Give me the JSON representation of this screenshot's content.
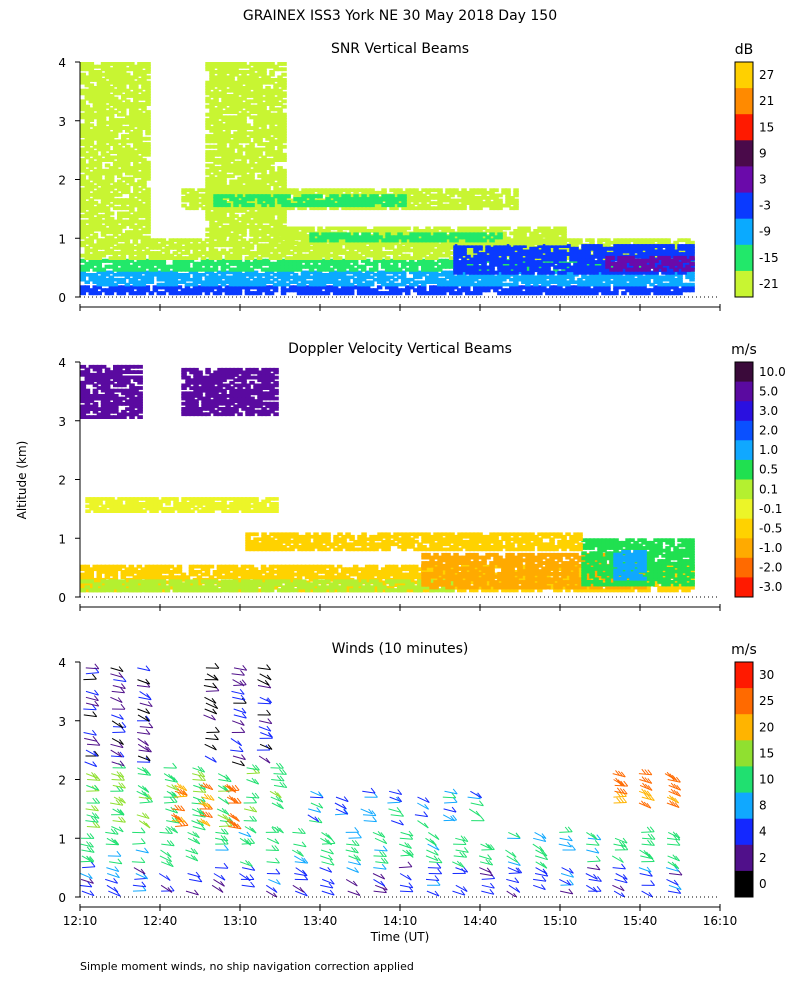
{
  "title": "GRAINEX ISS3 York NE  30 May 2018 Day 150",
  "xlabel": "Time (UT)",
  "ylabel": "Altitude (km)",
  "footnote": "Simple moment winds, no ship navigation correction applied",
  "x_ticks": [
    "12:10",
    "12:40",
    "13:10",
    "13:40",
    "14:10",
    "14:40",
    "15:10",
    "15:40",
    "16:10"
  ],
  "chart_data": [
    {
      "type": "heatmap",
      "title": "SNR Vertical Beams",
      "xlim_hours": [
        12.1667,
        16.1667
      ],
      "ylim_km": [
        0,
        4
      ],
      "y_ticks": [
        0,
        1,
        2,
        3,
        4
      ],
      "colorbar": {
        "unit": "dB",
        "labels": [
          "27",
          "21",
          "15",
          "9",
          "3",
          "-3",
          "-9",
          "-15",
          "-21"
        ],
        "colors": [
          "#ffd000",
          "#ff8a00",
          "#ff1a00",
          "#4a0a4a",
          "#6a0aaa",
          "#0a3aff",
          "#0aaaff",
          "#22e86a",
          "#c8f532"
        ]
      },
      "layers": [
        {
          "t0": 12.17,
          "t1": 16.0,
          "z0": 0.05,
          "z1": 0.2,
          "class": "-3"
        },
        {
          "t0": 12.17,
          "t1": 16.0,
          "z0": 0.2,
          "z1": 0.45,
          "class": "-9"
        },
        {
          "t0": 12.17,
          "t1": 16.0,
          "z0": 0.45,
          "z1": 0.65,
          "class": "-15"
        },
        {
          "t0": 12.17,
          "t1": 16.0,
          "z0": 0.65,
          "z1": 1.0,
          "class": "-21"
        },
        {
          "t0": 14.5,
          "t1": 16.0,
          "z0": 0.4,
          "z1": 0.9,
          "class": "-3"
        },
        {
          "t0": 15.45,
          "t1": 16.0,
          "z0": 0.45,
          "z1": 0.7,
          "class": "3"
        },
        {
          "t0": 12.17,
          "t1": 12.6,
          "z0": 1.0,
          "z1": 4.0,
          "class": "-21"
        },
        {
          "t0": 12.95,
          "t1": 13.45,
          "z0": 1.0,
          "z1": 4.0,
          "class": "-21"
        },
        {
          "t0": 12.8,
          "t1": 14.9,
          "z0": 1.5,
          "z1": 1.85,
          "class": "-21"
        },
        {
          "t0": 13.0,
          "t1": 14.2,
          "z0": 1.55,
          "z1": 1.75,
          "class": "-15"
        },
        {
          "t0": 13.4,
          "t1": 15.2,
          "z0": 0.9,
          "z1": 1.2,
          "class": "-21"
        },
        {
          "t0": 13.6,
          "t1": 14.8,
          "z0": 0.95,
          "z1": 1.1,
          "class": "-15"
        }
      ]
    },
    {
      "type": "heatmap",
      "title": "Doppler Velocity Vertical Beams",
      "xlim_hours": [
        12.1667,
        16.1667
      ],
      "ylim_km": [
        0,
        4
      ],
      "y_ticks": [
        0,
        1,
        2,
        3,
        4
      ],
      "colorbar": {
        "unit": "m/s",
        "labels": [
          "10.0",
          "5.0",
          "3.0",
          "2.0",
          "1.0",
          "0.5",
          "0.1",
          "-0.1",
          "-0.5",
          "-1.0",
          "-2.0",
          "-3.0"
        ],
        "colors": [
          "#3a0a3a",
          "#5a0aa0",
          "#2a10e0",
          "#0a50ff",
          "#10a8ff",
          "#20e050",
          "#b4f030",
          "#ecf528",
          "#ffd200",
          "#ffaa00",
          "#ff6a00",
          "#ff1a00"
        ]
      },
      "layers": [
        {
          "t0": 12.17,
          "t1": 16.0,
          "z0": 0.1,
          "z1": 0.55,
          "class": "-0.5"
        },
        {
          "t0": 12.17,
          "t1": 14.5,
          "z0": 0.1,
          "z1": 0.3,
          "class": "0.1"
        },
        {
          "t0": 14.3,
          "t1": 15.7,
          "z0": 0.15,
          "z1": 0.75,
          "class": "-1.0"
        },
        {
          "t0": 15.3,
          "t1": 16.0,
          "z0": 0.2,
          "z1": 1.0,
          "class": "0.5"
        },
        {
          "t0": 15.5,
          "t1": 15.7,
          "z0": 0.3,
          "z1": 0.8,
          "class": "1.0"
        },
        {
          "t0": 12.2,
          "t1": 13.4,
          "z0": 1.45,
          "z1": 1.7,
          "class": "-0.1"
        },
        {
          "t0": 13.2,
          "t1": 15.3,
          "z0": 0.8,
          "z1": 1.1,
          "class": "-0.5"
        },
        {
          "t0": 12.17,
          "t1": 12.55,
          "z0": 3.05,
          "z1": 3.95,
          "class": "5.0"
        },
        {
          "t0": 12.8,
          "t1": 13.4,
          "z0": 3.1,
          "z1": 3.9,
          "class": "5.0"
        }
      ]
    },
    {
      "type": "wind_barbs",
      "title": "Winds (10 minutes)",
      "xlim_hours": [
        12.1667,
        16.1667
      ],
      "ylim_km": [
        0,
        4
      ],
      "y_ticks": [
        0,
        1,
        2,
        3,
        4
      ],
      "colorbar": {
        "unit": "m/s",
        "labels": [
          "30",
          "25",
          "20",
          "15",
          "10",
          "8",
          "4",
          "2",
          "0"
        ],
        "colors": [
          "#ff1a00",
          "#ff6a00",
          "#ffb400",
          "#90e030",
          "#20e070",
          "#10a8ff",
          "#1428ff",
          "#50108a",
          "#000000"
        ]
      },
      "regions": [
        {
          "t0": 12.17,
          "t1": 16.0,
          "z0": 0.1,
          "z1": 0.6,
          "speed": 6
        },
        {
          "t0": 12.17,
          "t1": 16.0,
          "z0": 0.6,
          "z1": 1.2,
          "speed": 12
        },
        {
          "t0": 12.2,
          "t1": 13.5,
          "z0": 1.2,
          "z1": 2.3,
          "speed": 14
        },
        {
          "t0": 12.75,
          "t1": 13.2,
          "z0": 1.2,
          "z1": 2.0,
          "speed": 26
        },
        {
          "t0": 12.2,
          "t1": 12.6,
          "z0": 2.3,
          "z1": 4.0,
          "speed": 3
        },
        {
          "t0": 12.95,
          "t1": 13.35,
          "z0": 2.3,
          "z1": 4.0,
          "speed": 3
        },
        {
          "t0": 13.6,
          "t1": 14.7,
          "z0": 1.3,
          "z1": 1.9,
          "speed": 9
        },
        {
          "t0": 15.5,
          "t1": 15.9,
          "z0": 1.6,
          "z1": 2.2,
          "speed": 26
        }
      ]
    }
  ]
}
